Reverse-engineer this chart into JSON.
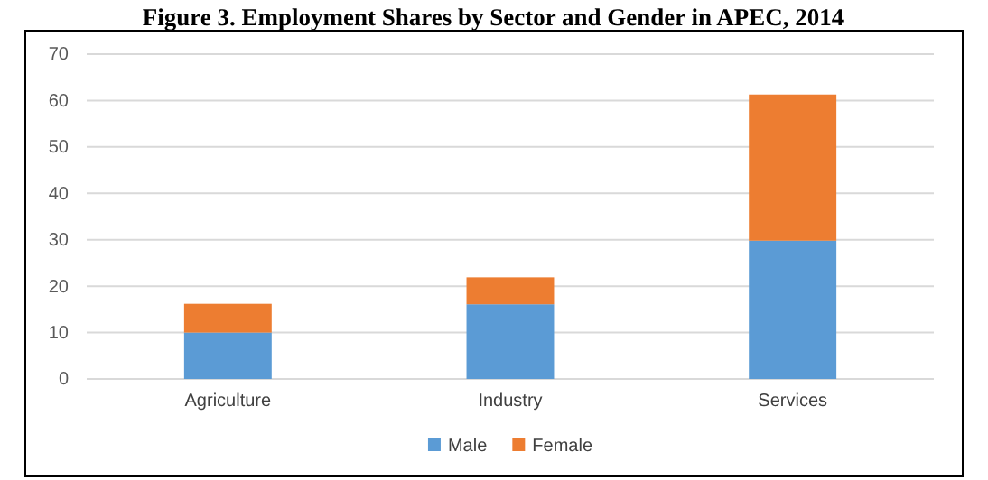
{
  "chart_data": {
    "type": "bar",
    "title": "Figure 3. Employment Shares by Sector and Gender in APEC, 2014",
    "categories": [
      "Agriculture",
      "Industry",
      "Services"
    ],
    "series": [
      {
        "name": "Male",
        "color": "#5b9bd5",
        "values": [
          10.0,
          16.1,
          29.8
        ]
      },
      {
        "name": "Female",
        "color": "#ed7d31",
        "values": [
          6.2,
          5.8,
          31.5
        ]
      }
    ],
    "stacked": true,
    "ylim": [
      0,
      70
    ],
    "yticks": [
      0,
      10,
      20,
      30,
      40,
      50,
      60,
      70
    ],
    "grid": "y",
    "legend": "bottom"
  }
}
